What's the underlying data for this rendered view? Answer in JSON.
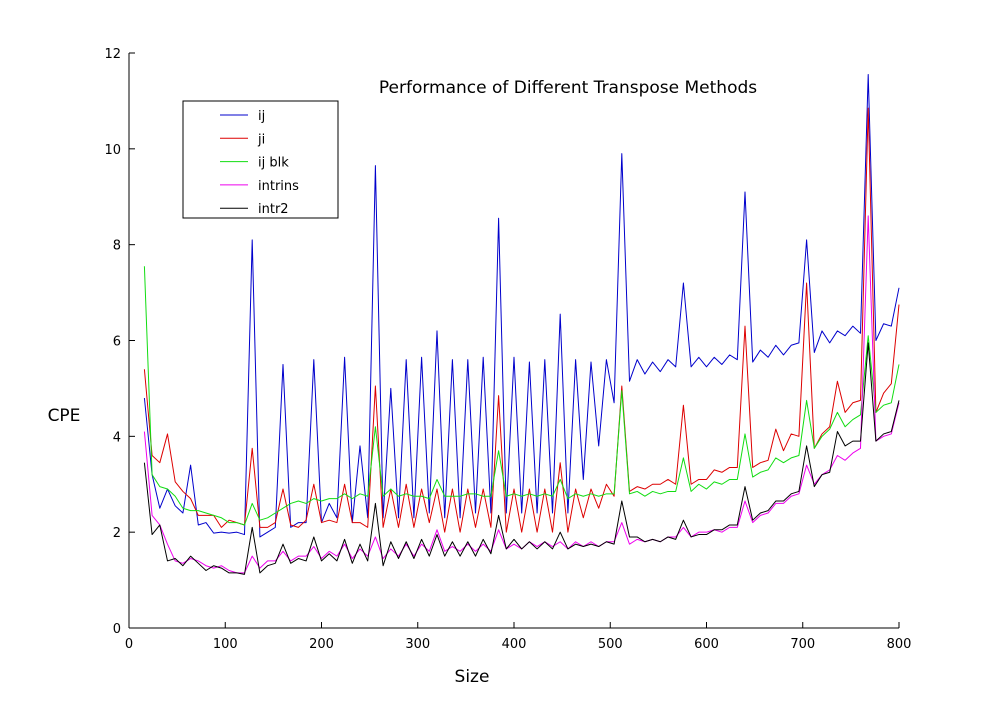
{
  "chart_data": {
    "type": "line",
    "title": "Performance of Different Transpose Methods",
    "xlabel": "Size",
    "ylabel": "CPE",
    "xlim": [
      0,
      800
    ],
    "ylim": [
      0,
      12
    ],
    "xticks": [
      "0",
      "100",
      "200",
      "300",
      "400",
      "500",
      "600",
      "700",
      "800"
    ],
    "yticks": [
      "0",
      "2",
      "4",
      "6",
      "8",
      "10",
      "12"
    ],
    "grid": false,
    "legend_position": "top-left",
    "x": [
      16,
      24,
      32,
      40,
      48,
      56,
      64,
      72,
      80,
      88,
      96,
      104,
      112,
      120,
      128,
      136,
      144,
      152,
      160,
      168,
      176,
      184,
      192,
      200,
      208,
      216,
      224,
      232,
      240,
      248,
      256,
      264,
      272,
      280,
      288,
      296,
      304,
      312,
      320,
      328,
      336,
      344,
      352,
      360,
      368,
      376,
      384,
      392,
      400,
      408,
      416,
      424,
      432,
      440,
      448,
      456,
      464,
      472,
      480,
      488,
      496,
      504,
      512,
      520,
      528,
      536,
      544,
      552,
      560,
      568,
      576,
      584,
      592,
      600,
      608,
      616,
      624,
      632,
      640,
      648,
      656,
      664,
      672,
      680,
      688,
      696,
      704,
      712,
      720,
      728,
      736,
      744,
      752,
      760,
      768,
      776,
      784,
      792,
      800
    ],
    "series": [
      {
        "name": "ij",
        "color": "#0000cc",
        "values": [
          4.8,
          3.2,
          2.5,
          2.9,
          2.55,
          2.4,
          3.4,
          2.15,
          2.2,
          1.98,
          2.0,
          1.98,
          2.0,
          1.95,
          8.1,
          1.9,
          2.0,
          2.1,
          5.5,
          2.1,
          2.2,
          2.2,
          5.6,
          2.2,
          2.6,
          2.3,
          5.65,
          2.2,
          3.8,
          2.3,
          9.65,
          2.3,
          5.0,
          2.3,
          5.6,
          2.3,
          5.65,
          2.4,
          6.2,
          2.3,
          5.6,
          2.3,
          5.6,
          2.4,
          5.65,
          2.4,
          8.55,
          2.4,
          5.65,
          2.4,
          5.55,
          2.4,
          5.6,
          2.4,
          6.55,
          2.4,
          5.6,
          3.1,
          5.55,
          3.8,
          5.6,
          4.7,
          9.9,
          5.15,
          5.6,
          5.3,
          5.55,
          5.35,
          5.6,
          5.45,
          7.2,
          5.45,
          5.65,
          5.45,
          5.65,
          5.5,
          5.7,
          5.6,
          9.1,
          5.55,
          5.8,
          5.65,
          5.9,
          5.7,
          5.9,
          5.95,
          8.1,
          5.75,
          6.2,
          5.95,
          6.2,
          6.1,
          6.3,
          6.15,
          11.55,
          6.0,
          6.35,
          6.3,
          7.1
        ]
      },
      {
        "name": "ji",
        "color": "#dd0000",
        "values": [
          5.4,
          3.6,
          3.45,
          4.05,
          3.05,
          2.85,
          2.7,
          2.35,
          2.35,
          2.35,
          2.1,
          2.25,
          2.2,
          2.15,
          3.75,
          2.1,
          2.1,
          2.2,
          2.9,
          2.15,
          2.1,
          2.25,
          3.0,
          2.2,
          2.25,
          2.2,
          3.0,
          2.2,
          2.2,
          2.1,
          5.05,
          2.1,
          2.9,
          2.1,
          3.0,
          2.1,
          2.9,
          2.2,
          2.9,
          2.0,
          2.9,
          2.0,
          2.9,
          2.1,
          2.9,
          2.1,
          4.85,
          2.0,
          2.9,
          2.0,
          2.9,
          2.0,
          2.9,
          2.0,
          3.45,
          2.0,
          2.9,
          2.3,
          2.9,
          2.5,
          3.0,
          2.75,
          5.05,
          2.85,
          2.95,
          2.9,
          3.0,
          3.0,
          3.1,
          3.0,
          4.65,
          3.0,
          3.1,
          3.1,
          3.3,
          3.25,
          3.35,
          3.35,
          6.3,
          3.35,
          3.45,
          3.5,
          4.15,
          3.7,
          4.05,
          4.0,
          7.2,
          3.75,
          4.05,
          4.2,
          5.15,
          4.5,
          4.7,
          4.75,
          10.85,
          4.5,
          4.9,
          5.1,
          6.75
        ]
      },
      {
        "name": "ij blk",
        "color": "#11dd11",
        "values": [
          7.55,
          3.2,
          2.95,
          2.9,
          2.75,
          2.5,
          2.45,
          2.45,
          2.4,
          2.35,
          2.3,
          2.2,
          2.2,
          2.15,
          2.6,
          2.25,
          2.3,
          2.4,
          2.5,
          2.6,
          2.65,
          2.6,
          2.7,
          2.65,
          2.7,
          2.7,
          2.8,
          2.7,
          2.8,
          2.75,
          4.2,
          2.75,
          2.9,
          2.75,
          2.8,
          2.75,
          2.75,
          2.7,
          3.1,
          2.75,
          2.75,
          2.75,
          2.8,
          2.8,
          2.75,
          2.75,
          3.7,
          2.75,
          2.8,
          2.75,
          2.8,
          2.75,
          2.8,
          2.75,
          3.1,
          2.7,
          2.8,
          2.75,
          2.8,
          2.75,
          2.8,
          2.8,
          4.95,
          2.8,
          2.85,
          2.75,
          2.85,
          2.8,
          2.85,
          2.85,
          3.55,
          2.85,
          3.0,
          2.9,
          3.05,
          3.0,
          3.1,
          3.1,
          4.05,
          3.15,
          3.25,
          3.3,
          3.55,
          3.45,
          3.55,
          3.6,
          4.75,
          3.75,
          4.0,
          4.15,
          4.5,
          4.2,
          4.35,
          4.45,
          6.1,
          4.5,
          4.65,
          4.7,
          5.5
        ]
      },
      {
        "name": "intrins",
        "color": "#ee00ee",
        "values": [
          4.1,
          2.35,
          2.15,
          1.75,
          1.4,
          1.35,
          1.45,
          1.4,
          1.3,
          1.25,
          1.3,
          1.2,
          1.15,
          1.15,
          1.5,
          1.25,
          1.4,
          1.4,
          1.6,
          1.4,
          1.5,
          1.5,
          1.7,
          1.45,
          1.6,
          1.5,
          1.75,
          1.45,
          1.65,
          1.5,
          1.9,
          1.45,
          1.65,
          1.5,
          1.75,
          1.5,
          1.75,
          1.6,
          2.05,
          1.6,
          1.7,
          1.6,
          1.75,
          1.6,
          1.75,
          1.6,
          2.05,
          1.65,
          1.75,
          1.65,
          1.8,
          1.7,
          1.8,
          1.7,
          1.8,
          1.65,
          1.8,
          1.7,
          1.8,
          1.7,
          1.8,
          1.8,
          2.2,
          1.75,
          1.85,
          1.8,
          1.85,
          1.8,
          1.9,
          1.9,
          2.1,
          1.9,
          2.0,
          2.0,
          2.05,
          2.0,
          2.1,
          2.1,
          2.65,
          2.2,
          2.35,
          2.4,
          2.6,
          2.6,
          2.75,
          2.8,
          3.4,
          3.0,
          3.2,
          3.3,
          3.6,
          3.5,
          3.65,
          3.75,
          8.6,
          3.9,
          4.0,
          4.05,
          4.7
        ]
      },
      {
        "name": "intr2",
        "color": "#000000",
        "values": [
          3.45,
          1.95,
          2.15,
          1.4,
          1.45,
          1.3,
          1.5,
          1.35,
          1.2,
          1.3,
          1.25,
          1.15,
          1.15,
          1.12,
          2.1,
          1.15,
          1.3,
          1.35,
          1.75,
          1.35,
          1.45,
          1.4,
          1.9,
          1.4,
          1.55,
          1.4,
          1.85,
          1.35,
          1.75,
          1.4,
          2.6,
          1.3,
          1.8,
          1.45,
          1.8,
          1.45,
          1.85,
          1.5,
          1.95,
          1.5,
          1.8,
          1.5,
          1.8,
          1.5,
          1.85,
          1.55,
          2.35,
          1.65,
          1.85,
          1.65,
          1.8,
          1.65,
          1.8,
          1.65,
          2.0,
          1.65,
          1.75,
          1.7,
          1.75,
          1.7,
          1.8,
          1.75,
          2.65,
          1.9,
          1.9,
          1.8,
          1.85,
          1.8,
          1.9,
          1.85,
          2.25,
          1.9,
          1.95,
          1.95,
          2.05,
          2.05,
          2.15,
          2.15,
          2.95,
          2.25,
          2.4,
          2.45,
          2.65,
          2.65,
          2.8,
          2.85,
          3.8,
          2.95,
          3.2,
          3.25,
          4.1,
          3.8,
          3.9,
          3.9,
          5.95,
          3.9,
          4.05,
          4.1,
          4.75
        ]
      }
    ]
  }
}
